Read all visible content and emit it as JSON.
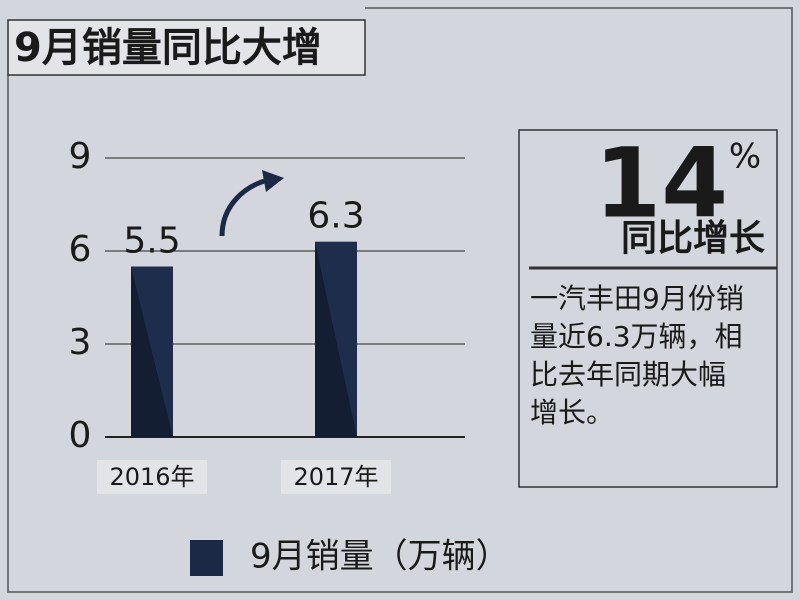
{
  "chart_data": {
    "type": "bar",
    "title": "9月销量同比大增",
    "categories": [
      "2016年",
      "2017年"
    ],
    "series": [
      {
        "name": "9月销量（万辆）",
        "color": "#1b2946",
        "values": [
          5.5,
          6.3
        ]
      }
    ],
    "ylim": [
      0,
      9
    ],
    "yticks": [
      0,
      3,
      6,
      9
    ],
    "grid": true,
    "legend": "bottom"
  },
  "callout": {
    "value": 14,
    "unit": "%",
    "label": "同比增长",
    "text": [
      "一汽丰田9月份销",
      "量近6.3万辆，相",
      "比去年同期大幅",
      "增长。"
    ]
  }
}
